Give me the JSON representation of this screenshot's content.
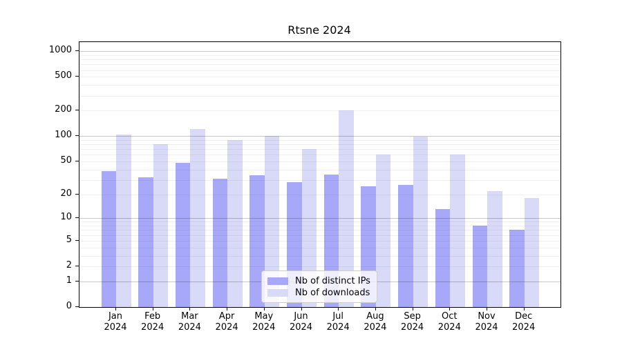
{
  "chart_data": {
    "type": "bar",
    "title": "Rtsne 2024",
    "categories": [
      "Jan",
      "Feb",
      "Mar",
      "Apr",
      "May",
      "Jun",
      "Jul",
      "Aug",
      "Sep",
      "Oct",
      "Nov",
      "Dec"
    ],
    "category_year": "2024",
    "series": [
      {
        "name": "Nb of distinct IPs",
        "color": "#a8a8f8",
        "values": [
          38,
          32,
          48,
          31,
          34,
          28,
          35,
          25,
          26,
          13,
          8,
          7
        ]
      },
      {
        "name": "Nb of downloads",
        "color": "#d9d9f8",
        "values": [
          105,
          80,
          122,
          90,
          100,
          71,
          200,
          60,
          99,
          61,
          22,
          18
        ]
      }
    ],
    "yscale": "log1p",
    "ylim": [
      0,
      1280
    ],
    "yticks": [
      0,
      1,
      2,
      5,
      10,
      20,
      50,
      100,
      200,
      500,
      1000
    ],
    "grid": true,
    "grid_major_values": [
      1,
      10,
      100,
      1000
    ],
    "grid_minor_values": [
      2,
      3,
      4,
      5,
      6,
      7,
      8,
      9,
      20,
      30,
      40,
      50,
      60,
      70,
      80,
      90,
      200,
      300,
      400,
      500,
      600,
      700,
      800,
      900
    ],
    "legend_position": "lower center"
  }
}
